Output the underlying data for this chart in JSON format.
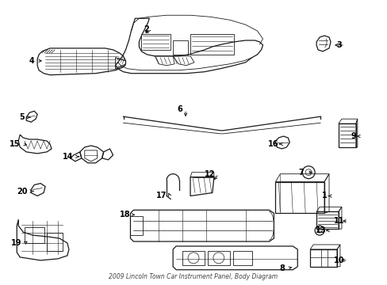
{
  "title": "2009 Lincoln Town Car Instrument Panel, Body Diagram",
  "background_color": "#ffffff",
  "line_color": "#1a1a1a",
  "label_color": "#000000",
  "figsize": [
    4.89,
    3.6
  ],
  "dpi": 100
}
